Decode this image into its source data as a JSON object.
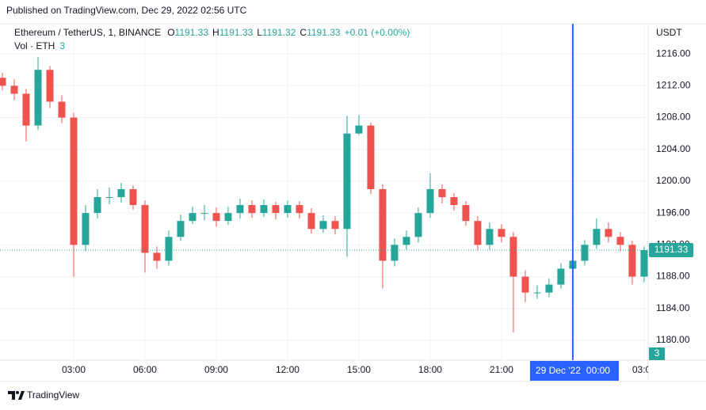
{
  "header": "Published on TradingView.com, Dec 29, 2022 02:56 UTC",
  "footer": "TradingView",
  "chart_data": {
    "type": "candlestick",
    "symbol": "Ethereum / TetherUS, 1, BINANCE",
    "ohlc": [
      {
        "label": "O",
        "value": 1191.33
      },
      {
        "label": "H",
        "value": 1191.33
      },
      {
        "label": "L",
        "value": 1191.32
      },
      {
        "label": "C",
        "value": 1191.33
      }
    ],
    "change": "+0.01 (+0.00%)",
    "volume_label": "Vol · ETH",
    "volume_last": 3,
    "y_unit": "USDT",
    "up_color": "#26a69a",
    "down_color": "#ef5350",
    "x": [
      0,
      0.5,
      1,
      1.5,
      2,
      2.5,
      3,
      3.5,
      4,
      4.5,
      5,
      5.5,
      6,
      6.5,
      7,
      7.5,
      8,
      8.5,
      9,
      9.5,
      10,
      10.5,
      11,
      11.5,
      12,
      12.5,
      13,
      13.5,
      14,
      14.5,
      15,
      15.5,
      16,
      16.5,
      17,
      17.5,
      18,
      18.5,
      19,
      19.5,
      20,
      20.5,
      21,
      21.5,
      22,
      22.5,
      23,
      23.5,
      24,
      24.5,
      25,
      25.5,
      26,
      26.5,
      27
    ],
    "open": [
      1213,
      1212,
      1211,
      1207,
      1214,
      1210,
      1208,
      1192,
      1196,
      1198,
      1198,
      1199,
      1197,
      1191,
      1190,
      1193,
      1195,
      1196,
      1196,
      1195,
      1196,
      1197,
      1196,
      1197,
      1196,
      1197,
      1196,
      1194,
      1195,
      1194,
      1206,
      1207,
      1199,
      1190,
      1192,
      1193,
      1196,
      1199,
      1198,
      1197,
      1195,
      1192,
      1194,
      1193,
      1188,
      1186,
      1186,
      1187,
      1189,
      1190,
      1192,
      1194,
      1193,
      1192,
      1188
    ],
    "high": [
      1213.6,
      1212.8,
      1211.6,
      1215.6,
      1214.5,
      1210.8,
      1208.6,
      1197,
      1199,
      1199.2,
      1199.8,
      1199.5,
      1197.6,
      1191.8,
      1193.8,
      1195.8,
      1196.8,
      1197,
      1196.7,
      1196.8,
      1197.8,
      1197.6,
      1197.7,
      1197.4,
      1197.6,
      1197.5,
      1196.6,
      1195.7,
      1195.6,
      1208.2,
      1208.3,
      1207.4,
      1199.6,
      1192.8,
      1193.8,
      1196.7,
      1201,
      1199.6,
      1198.5,
      1197.5,
      1195.6,
      1194.8,
      1194.6,
      1193.6,
      1188.8,
      1186.9,
      1187.8,
      1189.7,
      1190.7,
      1192.6,
      1195.3,
      1194.8,
      1193.6,
      1192.5,
      1191.8
    ],
    "low": [
      1211.4,
      1210.2,
      1205,
      1206.4,
      1209.2,
      1207.3,
      1188,
      1191.2,
      1195.3,
      1197.1,
      1197.3,
      1196.4,
      1188.5,
      1189,
      1189.4,
      1192.5,
      1194.6,
      1195.1,
      1194.3,
      1194.5,
      1195.3,
      1195.4,
      1195.5,
      1195.2,
      1195.4,
      1195.3,
      1193.4,
      1193.5,
      1193.3,
      1190.5,
      1205.8,
      1198.4,
      1186.5,
      1189.3,
      1191.4,
      1192.3,
      1195.4,
      1197.2,
      1196.3,
      1194.4,
      1191.3,
      1191.4,
      1192.3,
      1181,
      1184.8,
      1185.2,
      1185.4,
      1186.5,
      1188.3,
      1189.4,
      1191.5,
      1192.3,
      1191.2,
      1187,
      1187.3
    ],
    "close": [
      1212,
      1211,
      1207,
      1214,
      1210,
      1208,
      1192,
      1196,
      1198,
      1198,
      1199,
      1197,
      1191,
      1190,
      1193,
      1195,
      1196,
      1196,
      1195,
      1196,
      1197,
      1196,
      1197,
      1196,
      1197,
      1196,
      1194,
      1195,
      1194,
      1206,
      1207,
      1199,
      1190,
      1192,
      1193,
      1196,
      1199,
      1198,
      1197,
      1195,
      1192,
      1194,
      1193,
      1188,
      1186,
      1186,
      1187,
      1189,
      1190,
      1192,
      1194,
      1193,
      1192,
      1188,
      1191.33
    ],
    "xlim": [
      -0.1,
      27.17
    ],
    "ylim": [
      1177.5,
      1219.8
    ],
    "yticks": [
      {
        "value": 1180,
        "label": "1180.00"
      },
      {
        "value": 1184,
        "label": "1184.00"
      },
      {
        "value": 1188,
        "label": "1188.00"
      },
      {
        "value": 1192,
        "label": "1192.00"
      },
      {
        "value": 1196,
        "label": "1196.00"
      },
      {
        "value": 1200,
        "label": "1200.00"
      },
      {
        "value": 1204,
        "label": "1204.00"
      },
      {
        "value": 1208,
        "label": "1208.00"
      },
      {
        "value": 1212,
        "label": "1212.00"
      },
      {
        "value": 1216,
        "label": "1216.00"
      }
    ],
    "xticks": [
      {
        "value": 3,
        "label": "03:00"
      },
      {
        "value": 6,
        "label": "06:00"
      },
      {
        "value": 9,
        "label": "09:00"
      },
      {
        "value": 12,
        "label": "12:00"
      },
      {
        "value": 15,
        "label": "15:00"
      },
      {
        "value": 18,
        "label": "18:00"
      },
      {
        "value": 21,
        "label": "21:00"
      },
      {
        "value": 27,
        "label": "03:00"
      }
    ],
    "crosshair": {
      "x": 24,
      "date_label": "29 Dec '22",
      "time_label": "00:00",
      "color": "#2962ff"
    },
    "grid": true
  }
}
